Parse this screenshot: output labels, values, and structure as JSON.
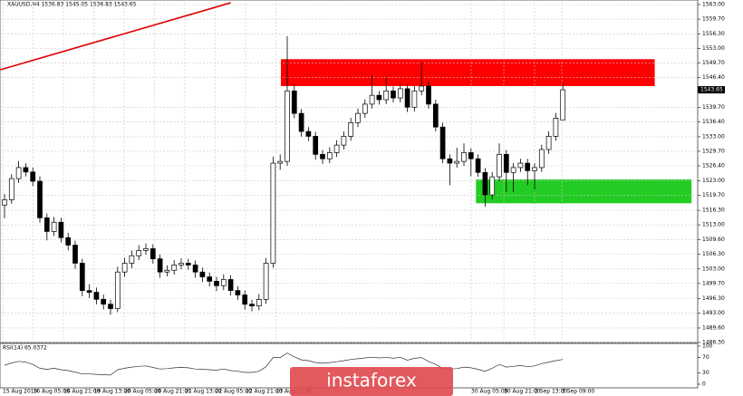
{
  "chart_data": {
    "type": "candlestick",
    "title": "XAUUSD,H4 1536.83 1545.05 1536.83 1543.65",
    "last_price_label": "1543.65",
    "ylim": [
      1486.3,
      1563
    ],
    "yticks": [
      {
        "value": 1563,
        "label": "1563.00"
      },
      {
        "value": 1559.7,
        "label": "1559.70"
      },
      {
        "value": 1556.3,
        "label": "1556.30"
      },
      {
        "value": 1553,
        "label": "1553.00"
      },
      {
        "value": 1549.7,
        "label": "1549.70"
      },
      {
        "value": 1546.4,
        "label": "1546.40"
      },
      {
        "value": 1539.7,
        "label": "1539.70"
      },
      {
        "value": 1536.4,
        "label": "1536.40"
      },
      {
        "value": 1533,
        "label": "1533.00"
      },
      {
        "value": 1529.7,
        "label": "1529.70"
      },
      {
        "value": 1526.4,
        "label": "1526.40"
      },
      {
        "value": 1523,
        "label": "1523.00"
      },
      {
        "value": 1519.7,
        "label": "1519.70"
      },
      {
        "value": 1516.3,
        "label": "1516.30"
      },
      {
        "value": 1513,
        "label": "1513.00"
      },
      {
        "value": 1509.6,
        "label": "1509.60"
      },
      {
        "value": 1506.3,
        "label": "1506.30"
      },
      {
        "value": 1503,
        "label": "1503.00"
      },
      {
        "value": 1499.7,
        "label": "1499.70"
      },
      {
        "value": 1496.3,
        "label": "1496.30"
      },
      {
        "value": 1493,
        "label": "1493.00"
      },
      {
        "value": 1489.6,
        "label": "1489.60"
      },
      {
        "value": 1486.3,
        "label": "1486.30"
      }
    ],
    "grid": true,
    "categories_shown": [
      "15 Aug 2019",
      "16 Aug 05:00",
      "16 Aug 21:00",
      "19 Aug 13:00",
      "20 Aug 05:00",
      "20 Aug 21:00",
      "21 Aug 13:00",
      "22 Aug 05:00",
      "22 Aug 21:00",
      "23 Aug 13:00",
      "30 Aug 05:00",
      "30 Aug 21:00",
      "2 Sep 13:00",
      "3 Sep 09:00"
    ],
    "open": [
      1517.5,
      1518.7,
      1523.5,
      1526.0,
      1525.0,
      1522.9,
      1514.6,
      1511.5,
      1513.6,
      1510.1,
      1508.4,
      1504.3,
      1498.1,
      1497.7,
      1496.1,
      1495.0,
      1494.0,
      1502.3,
      1504.3,
      1506.0,
      1507.2,
      1507.6,
      1505.3,
      1502.3,
      1502.7,
      1503.9,
      1504.3,
      1503.9,
      1502.3,
      1501.2,
      1500.2,
      1499.2,
      1500.6,
      1498.1,
      1497.1,
      1495.0,
      1494.6,
      1496.1,
      1504.3,
      1527.0,
      1527.4,
      1543.4,
      1538.3,
      1534.2,
      1533.1,
      1529.0,
      1528.0,
      1529.4,
      1531.1,
      1533.1,
      1536.2,
      1538.3,
      1540.4,
      1542.4,
      1541.4,
      1543.4,
      1541.8,
      1543.9,
      1539.7,
      1543.4,
      1544.5,
      1540.4,
      1535.2,
      1528.0,
      1527.0,
      1527.4,
      1529.4,
      1528.0,
      1524.9,
      1519.8,
      1523.9,
      1529.0,
      1524.9,
      1526.0,
      1527.0,
      1525.3,
      1526.0,
      1530.1,
      1533.1,
      1536.83
    ],
    "high": [
      1520.0,
      1524.5,
      1527.5,
      1527.0,
      1526.0,
      1524.0,
      1515.6,
      1514.8,
      1514.6,
      1511.2,
      1509.4,
      1505.3,
      1499.5,
      1498.8,
      1497.2,
      1496.0,
      1503.5,
      1505.5,
      1507.2,
      1508.4,
      1508.8,
      1508.6,
      1506.3,
      1503.8,
      1505.0,
      1505.4,
      1505.3,
      1504.9,
      1503.3,
      1502.2,
      1501.2,
      1501.8,
      1501.6,
      1499.1,
      1498.1,
      1496.0,
      1497.3,
      1505.5,
      1528.5,
      1529.0,
      1555.8,
      1545.0,
      1539.3,
      1535.2,
      1534.1,
      1530.0,
      1530.6,
      1532.2,
      1534.2,
      1537.3,
      1539.4,
      1541.5,
      1547.0,
      1543.4,
      1546.5,
      1544.4,
      1545.0,
      1544.9,
      1544.5,
      1550.0,
      1545.5,
      1541.4,
      1536.2,
      1529.0,
      1530.5,
      1531.5,
      1530.4,
      1529.0,
      1525.9,
      1525.0,
      1531.5,
      1530.0,
      1527.0,
      1528.0,
      1528.0,
      1527.0,
      1531.2,
      1534.2,
      1538.4,
      1545.05
    ],
    "low": [
      1514.5,
      1517.8,
      1522.5,
      1524.0,
      1521.8,
      1513.5,
      1509.5,
      1510.5,
      1509.0,
      1507.2,
      1503.0,
      1496.8,
      1496.4,
      1495.0,
      1493.8,
      1492.6,
      1493.2,
      1501.2,
      1503.2,
      1505.0,
      1506.2,
      1504.2,
      1501.0,
      1501.3,
      1501.7,
      1502.9,
      1502.8,
      1501.0,
      1500.0,
      1499.0,
      1498.0,
      1498.2,
      1497.0,
      1496.0,
      1493.8,
      1493.4,
      1493.6,
      1495.1,
      1503.3,
      1525.5,
      1526.4,
      1537.2,
      1533.0,
      1532.0,
      1527.8,
      1526.8,
      1527.0,
      1528.4,
      1530.1,
      1532.1,
      1535.2,
      1537.3,
      1539.4,
      1540.3,
      1540.4,
      1540.8,
      1540.8,
      1538.6,
      1538.7,
      1542.4,
      1539.4,
      1534.2,
      1527.0,
      1522.0,
      1526.0,
      1526.4,
      1524.0,
      1523.9,
      1517.1,
      1518.8,
      1522.9,
      1520.5,
      1520.5,
      1525.0,
      1522.0,
      1521.0,
      1525.0,
      1529.1,
      1532.1,
      1536.83
    ],
    "close": [
      1518.7,
      1523.5,
      1526.0,
      1525.0,
      1522.9,
      1514.6,
      1511.5,
      1513.6,
      1510.1,
      1508.4,
      1504.3,
      1498.1,
      1497.7,
      1496.1,
      1495.0,
      1494.0,
      1502.3,
      1504.3,
      1506.0,
      1507.2,
      1507.6,
      1505.3,
      1502.3,
      1502.7,
      1503.9,
      1504.3,
      1503.9,
      1502.3,
      1501.2,
      1500.2,
      1499.2,
      1500.6,
      1498.1,
      1497.1,
      1495.0,
      1494.6,
      1496.1,
      1504.3,
      1527.0,
      1527.4,
      1543.4,
      1538.3,
      1534.2,
      1533.1,
      1529.0,
      1528.0,
      1529.4,
      1531.1,
      1533.1,
      1536.2,
      1538.3,
      1540.4,
      1542.4,
      1541.4,
      1543.4,
      1541.8,
      1543.9,
      1539.7,
      1543.4,
      1544.5,
      1540.4,
      1535.2,
      1528.0,
      1527.0,
      1527.4,
      1529.4,
      1528.0,
      1524.9,
      1519.8,
      1523.9,
      1529.0,
      1524.9,
      1526.0,
      1527.0,
      1525.3,
      1526.0,
      1530.1,
      1533.1,
      1537.2,
      1543.65
    ],
    "zones": [
      {
        "color": "#ff0000",
        "low": 1544.5,
        "high": 1550.6,
        "from": 39.1,
        "to": 92
      },
      {
        "color": "#22cc22",
        "low": 1517.9,
        "high": 1523.3,
        "from": 66.7,
        "to": 97.2
      }
    ],
    "trendline": {
      "color": "#e00000",
      "x": [
        -0.6,
        32
      ],
      "y": [
        1548.2,
        1563.4
      ]
    },
    "rsi": {
      "title": "RSI(14) 65.0372",
      "ylim": [
        0,
        100
      ],
      "yticks": [
        100,
        70,
        30,
        0
      ],
      "values": [
        50,
        56,
        60,
        58,
        52,
        42,
        39,
        42,
        38,
        36,
        32,
        27,
        27,
        26,
        25,
        24,
        38,
        42,
        45,
        47,
        48,
        44,
        40,
        41,
        43,
        44,
        43,
        40,
        39,
        38,
        37,
        40,
        36,
        34,
        31,
        31,
        34,
        46,
        70,
        70,
        82,
        72,
        64,
        62,
        57,
        55,
        57,
        59,
        62,
        65,
        67,
        69,
        71,
        69,
        71,
        68,
        71,
        63,
        68,
        70,
        60,
        52,
        42,
        40,
        41,
        45,
        43,
        39,
        34,
        42,
        52,
        45,
        47,
        49,
        46,
        48,
        54,
        58,
        62,
        65.0372
      ]
    },
    "watermark": "instaforex"
  }
}
